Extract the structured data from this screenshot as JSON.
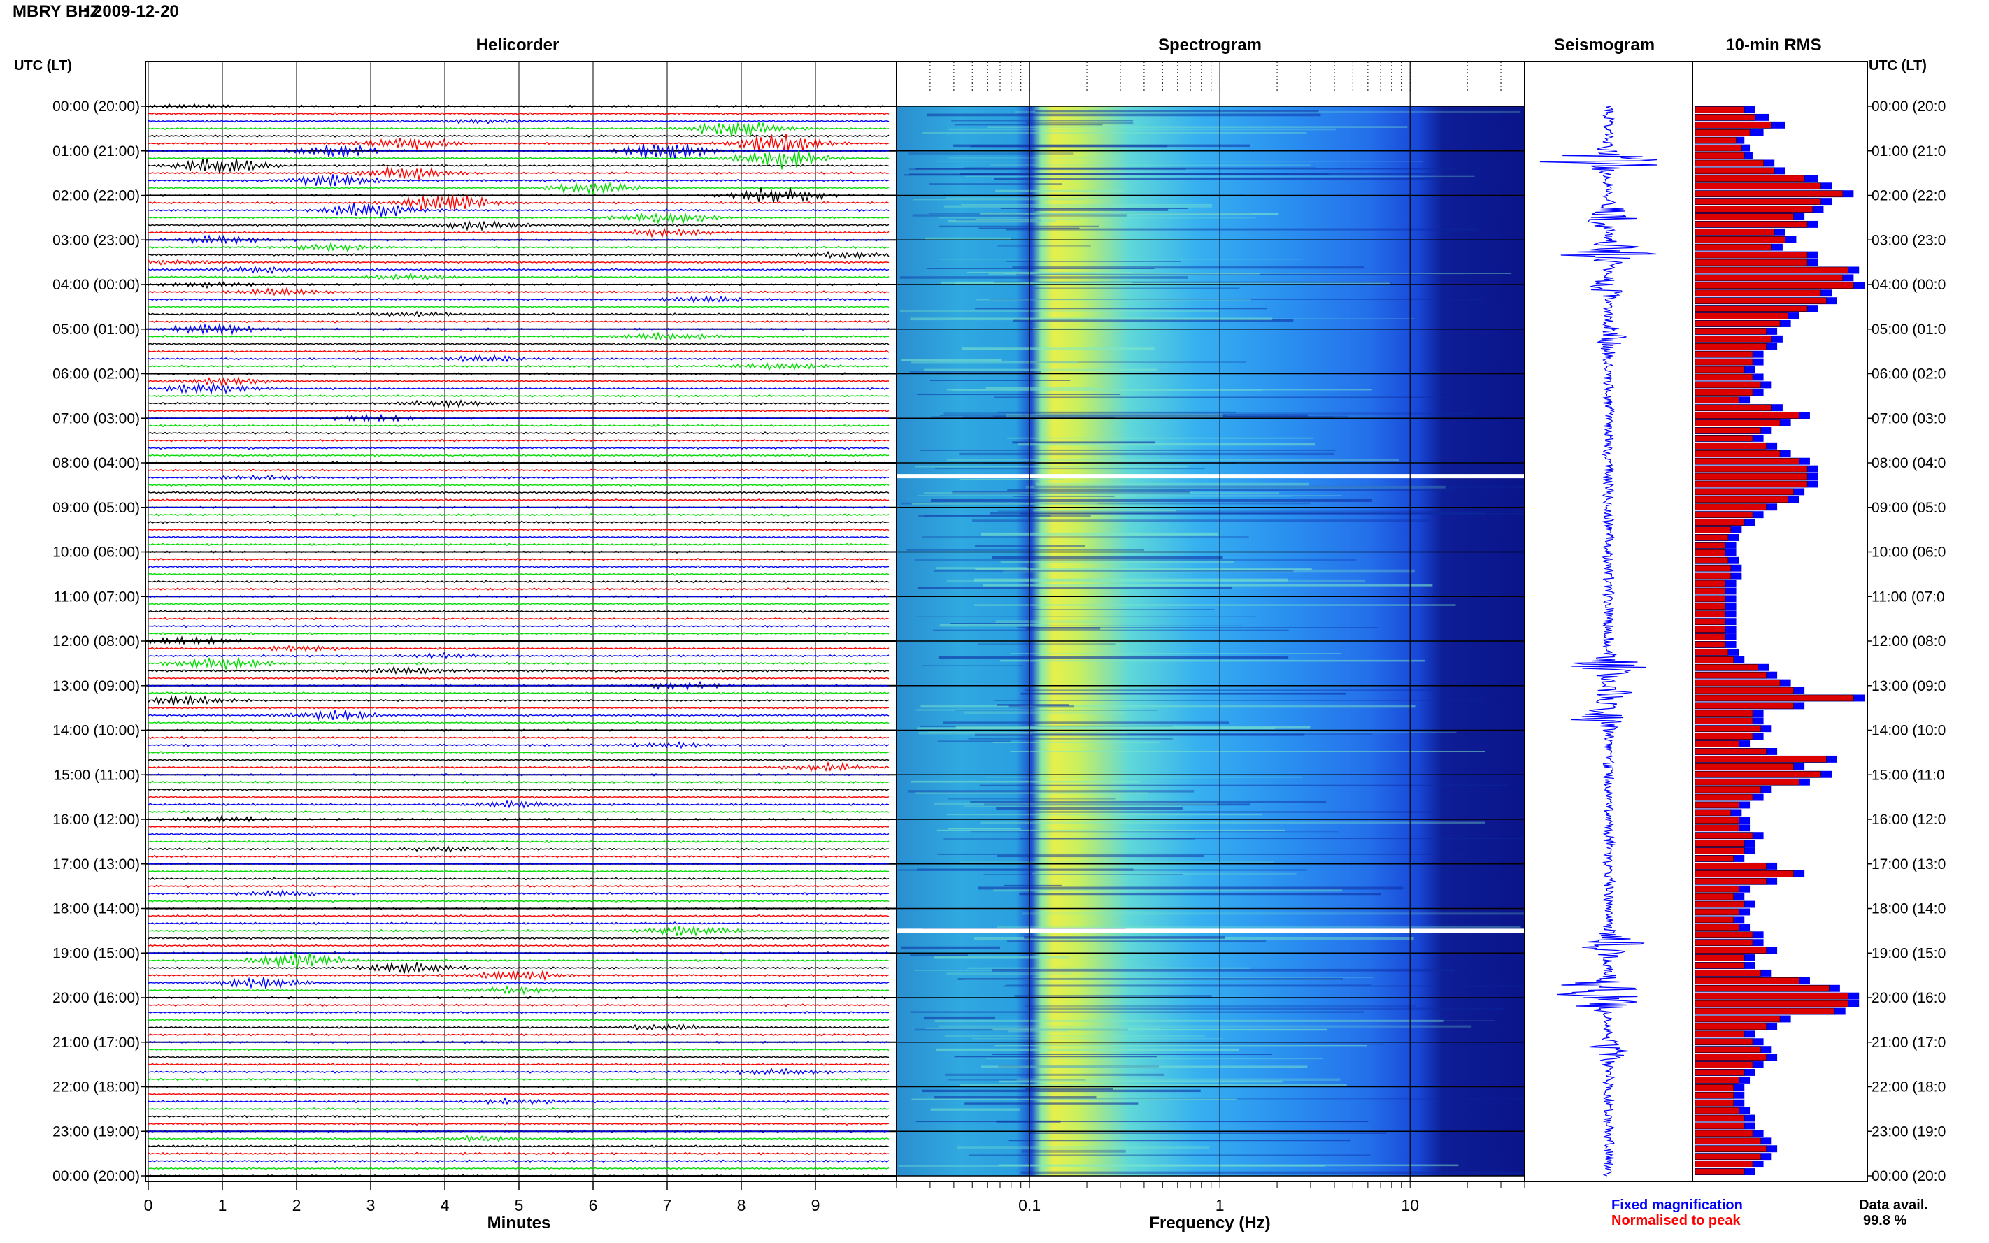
{
  "header": {
    "station": "MBRY BHZ",
    "date": "2009-12-20"
  },
  "panels": {
    "helicorder": "Helicorder",
    "spectrogram": "Spectrogram",
    "seismogram": "Seismogram",
    "rms": "10-min RMS"
  },
  "time_axis": {
    "left_title": "UTC (LT)",
    "right_title": "UTC (LT)",
    "labels": [
      "00:00 (20:00)",
      "01:00 (21:00)",
      "02:00 (22:00)",
      "03:00 (23:00)",
      "04:00 (00:00)",
      "05:00 (01:00)",
      "06:00 (02:00)",
      "07:00 (03:00)",
      "08:00 (04:00)",
      "09:00 (05:00)",
      "10:00 (06:00)",
      "11:00 (07:00)",
      "12:00 (08:00)",
      "13:00 (09:00)",
      "14:00 (10:00)",
      "15:00 (11:00)",
      "16:00 (12:00)",
      "17:00 (13:00)",
      "18:00 (14:00)",
      "19:00 (15:00)",
      "20:00 (16:00)",
      "21:00 (17:00)",
      "22:00 (18:00)",
      "23:00 (19:00)",
      "00:00 (20:00)"
    ],
    "right_labels": [
      "00:00 (20:0",
      "01:00 (21:0",
      "02:00 (22:0",
      "03:00 (23:0",
      "04:00 (00:0",
      "05:00 (01:0",
      "06:00 (02:0",
      "07:00 (03:0",
      "08:00 (04:0",
      "09:00 (05:0",
      "10:00 (06:0",
      "11:00 (07:0",
      "12:00 (08:0",
      "13:00 (09:0",
      "14:00 (10:0",
      "15:00 (11:0",
      "16:00 (12:0",
      "17:00 (13:0",
      "18:00 (14:0",
      "19:00 (15:0",
      "20:00 (16:0",
      "21:00 (17:0",
      "22:00 (18:0",
      "23:00 (19:0",
      "00:00 (20:0"
    ]
  },
  "minutes_axis": {
    "label": "Minutes",
    "ticks": [
      "0",
      "1",
      "2",
      "3",
      "4",
      "5",
      "6",
      "7",
      "8",
      "9"
    ]
  },
  "frequency_axis": {
    "label": "Frequency (Hz)",
    "ticks": [
      "0.1",
      "1",
      "10"
    ]
  },
  "legend": {
    "fixed": "Fixed magnification",
    "normalised": "Normalised to peak"
  },
  "availability": {
    "label": "Data avail.",
    "value": "99.8 %"
  },
  "colors": {
    "helicorder_lines": [
      "#000000",
      "#ff0000",
      "#0000ff",
      "#00dd00"
    ],
    "rms_fixed": "#0000ff",
    "rms_normalised": "#dd0000",
    "seismogram": "#0000ff",
    "spectrogram_scale": [
      "#0a1a8a",
      "#1040d0",
      "#1e7cf0",
      "#28c8f0",
      "#70e0b0",
      "#e8f040"
    ]
  },
  "chart_data": [
    {
      "type": "line",
      "title": "Helicorder",
      "xlabel": "Minutes",
      "xlim": [
        0,
        10
      ],
      "rows_per_hour": 6,
      "row_minutes": 10,
      "hours": 24,
      "events": [
        {
          "row": 0,
          "minute": 0.6,
          "amp": 0.5
        },
        {
          "row": 2,
          "minute": 4.5,
          "amp": 0.4
        },
        {
          "row": 3,
          "minute": 8.0,
          "amp": 2.5
        },
        {
          "row": 5,
          "minute": 3.5,
          "amp": 1.6
        },
        {
          "row": 5,
          "minute": 8.5,
          "amp": 2.5
        },
        {
          "row": 6,
          "minute": 2.5,
          "amp": 1.5
        },
        {
          "row": 6,
          "minute": 7.0,
          "amp": 2.5
        },
        {
          "row": 7,
          "minute": 8.5,
          "amp": 2.5
        },
        {
          "row": 8,
          "minute": 1.0,
          "amp": 2.0
        },
        {
          "row": 9,
          "minute": 3.5,
          "amp": 1.8
        },
        {
          "row": 10,
          "minute": 2.5,
          "amp": 1.5
        },
        {
          "row": 11,
          "minute": 6.0,
          "amp": 1.5
        },
        {
          "row": 12,
          "minute": 8.5,
          "amp": 2.0
        },
        {
          "row": 13,
          "minute": 4.0,
          "amp": 2.5
        },
        {
          "row": 14,
          "minute": 3.0,
          "amp": 2.0
        },
        {
          "row": 15,
          "minute": 7.0,
          "amp": 1.5
        },
        {
          "row": 16,
          "minute": 4.5,
          "amp": 1.0
        },
        {
          "row": 17,
          "minute": 7.0,
          "amp": 0.9
        },
        {
          "row": 18,
          "minute": 1.0,
          "amp": 1.0
        },
        {
          "row": 19,
          "minute": 2.5,
          "amp": 0.8
        },
        {
          "row": 20,
          "minute": 9.5,
          "amp": 0.7
        },
        {
          "row": 21,
          "minute": 0.3,
          "amp": 0.6
        },
        {
          "row": 22,
          "minute": 1.5,
          "amp": 0.7
        },
        {
          "row": 23,
          "minute": 3.5,
          "amp": 0.6
        },
        {
          "row": 24,
          "minute": 0.8,
          "amp": 0.6
        },
        {
          "row": 25,
          "minute": 1.8,
          "amp": 0.8
        },
        {
          "row": 26,
          "minute": 7.5,
          "amp": 0.7
        },
        {
          "row": 28,
          "minute": 3.5,
          "amp": 0.6
        },
        {
          "row": 30,
          "minute": 0.9,
          "amp": 1.4
        },
        {
          "row": 31,
          "minute": 7.0,
          "amp": 0.8
        },
        {
          "row": 34,
          "minute": 4.5,
          "amp": 0.7
        },
        {
          "row": 35,
          "minute": 8.5,
          "amp": 0.9
        },
        {
          "row": 37,
          "minute": 1.0,
          "amp": 0.9
        },
        {
          "row": 38,
          "minute": 0.8,
          "amp": 1.2
        },
        {
          "row": 40,
          "minute": 4.0,
          "amp": 0.8
        },
        {
          "row": 42,
          "minute": 3.0,
          "amp": 0.8
        },
        {
          "row": 50,
          "minute": 1.5,
          "amp": 0.5
        },
        {
          "row": 72,
          "minute": 0.6,
          "amp": 1.0
        },
        {
          "row": 73,
          "minute": 2.0,
          "amp": 0.6
        },
        {
          "row": 74,
          "minute": 4.0,
          "amp": 0.5
        },
        {
          "row": 75,
          "minute": 1.0,
          "amp": 1.5
        },
        {
          "row": 76,
          "minute": 3.5,
          "amp": 0.8
        },
        {
          "row": 78,
          "minute": 7.2,
          "amp": 0.8
        },
        {
          "row": 80,
          "minute": 0.5,
          "amp": 1.2
        },
        {
          "row": 82,
          "minute": 2.5,
          "amp": 1.2
        },
        {
          "row": 86,
          "minute": 7.0,
          "amp": 0.5
        },
        {
          "row": 89,
          "minute": 9.2,
          "amp": 0.9
        },
        {
          "row": 94,
          "minute": 5.0,
          "amp": 0.8
        },
        {
          "row": 96,
          "minute": 1.0,
          "amp": 0.6
        },
        {
          "row": 100,
          "minute": 4.0,
          "amp": 0.6
        },
        {
          "row": 106,
          "minute": 1.8,
          "amp": 0.6
        },
        {
          "row": 111,
          "minute": 7.3,
          "amp": 1.3
        },
        {
          "row": 115,
          "minute": 2.0,
          "amp": 2.0
        },
        {
          "row": 116,
          "minute": 3.5,
          "amp": 1.5
        },
        {
          "row": 117,
          "minute": 5.0,
          "amp": 1.3
        },
        {
          "row": 118,
          "minute": 1.5,
          "amp": 1.2
        },
        {
          "row": 119,
          "minute": 5.0,
          "amp": 0.8
        },
        {
          "row": 124,
          "minute": 7.0,
          "amp": 0.7
        },
        {
          "row": 130,
          "minute": 8.5,
          "amp": 0.7
        },
        {
          "row": 134,
          "minute": 5.0,
          "amp": 0.6
        },
        {
          "row": 139,
          "minute": 4.5,
          "amp": 0.6
        }
      ]
    },
    {
      "type": "heatmap",
      "title": "Spectrogram",
      "xlabel": "Frequency (Hz)",
      "scale": "log",
      "xlim": [
        0.02,
        40
      ],
      "gaps_hours": [
        8.3,
        18.5
      ]
    },
    {
      "type": "line",
      "title": "Seismogram",
      "events_hours": [
        {
          "h": 1.2,
          "amp": 1.0
        },
        {
          "h": 2.5,
          "amp": 0.6
        },
        {
          "h": 3.3,
          "amp": 0.8
        },
        {
          "h": 4.1,
          "amp": 0.3
        },
        {
          "h": 5.2,
          "amp": 0.25
        },
        {
          "h": 12.6,
          "amp": 0.7
        },
        {
          "h": 13.2,
          "amp": 0.3
        },
        {
          "h": 13.7,
          "amp": 0.6
        },
        {
          "h": 18.8,
          "amp": 0.6
        },
        {
          "h": 19.8,
          "amp": 0.8
        },
        {
          "h": 20.1,
          "amp": 0.5
        },
        {
          "h": 21.2,
          "amp": 0.25
        }
      ]
    },
    {
      "type": "bar",
      "title": "10-min RMS",
      "series": [
        {
          "name": "Fixed magnification",
          "values": [
            22,
            27,
            33,
            25,
            18,
            20,
            21,
            29,
            33,
            45,
            50,
            58,
            50,
            47,
            40,
            45,
            33,
            37,
            32,
            45,
            45,
            60,
            58,
            62,
            50,
            52,
            45,
            38,
            35,
            30,
            32,
            30,
            25,
            25,
            22,
            25,
            28,
            25,
            20,
            32,
            42,
            35,
            28,
            25,
            30,
            35,
            42,
            45,
            45,
            45,
            40,
            38,
            30,
            25,
            22,
            17,
            16,
            15,
            15,
            16,
            17,
            17,
            15,
            15,
            15,
            15,
            15,
            15,
            15,
            15,
            15,
            16,
            18,
            27,
            30,
            35,
            40,
            62,
            40,
            25,
            25,
            28,
            25,
            20,
            30,
            52,
            40,
            50,
            42,
            28,
            25,
            20,
            17,
            20,
            20,
            25,
            22,
            22,
            18,
            30,
            40,
            30,
            20,
            18,
            22,
            20,
            18,
            20,
            25,
            25,
            30,
            22,
            22,
            28,
            42,
            53,
            60,
            60,
            55,
            35,
            30,
            22,
            25,
            28,
            30,
            25,
            22,
            20,
            18,
            18,
            18,
            20,
            22,
            22,
            25,
            28,
            30,
            28,
            25,
            22
          ]
        },
        {
          "name": "Normalised to peak",
          "values": [
            18,
            22,
            28,
            20,
            15,
            17,
            18,
            25,
            29,
            40,
            46,
            54,
            46,
            43,
            36,
            41,
            29,
            33,
            28,
            41,
            41,
            56,
            54,
            58,
            46,
            48,
            41,
            34,
            31,
            26,
            28,
            26,
            21,
            21,
            18,
            21,
            24,
            21,
            16,
            28,
            38,
            31,
            24,
            21,
            26,
            31,
            38,
            41,
            41,
            41,
            36,
            34,
            26,
            21,
            18,
            13,
            12,
            11,
            11,
            12,
            13,
            13,
            11,
            11,
            11,
            11,
            11,
            11,
            11,
            11,
            11,
            12,
            14,
            23,
            26,
            31,
            36,
            58,
            36,
            21,
            21,
            24,
            21,
            16,
            26,
            48,
            36,
            46,
            38,
            24,
            21,
            16,
            13,
            16,
            16,
            21,
            18,
            18,
            14,
            26,
            36,
            26,
            16,
            14,
            18,
            16,
            14,
            16,
            21,
            21,
            26,
            18,
            18,
            24,
            38,
            49,
            56,
            56,
            51,
            31,
            26,
            18,
            21,
            24,
            26,
            21,
            18,
            16,
            14,
            14,
            14,
            16,
            18,
            18,
            21,
            24,
            26,
            24,
            21,
            18
          ]
        }
      ]
    }
  ]
}
